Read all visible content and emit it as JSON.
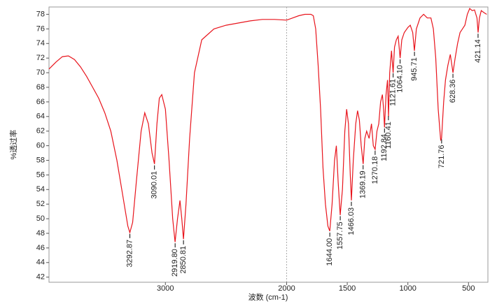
{
  "chart_data": {
    "type": "line",
    "x_label": "波数 (cm-1)",
    "y_label": "%透过率",
    "xlim": [
      3960,
      340
    ],
    "ylim": [
      41.3,
      79
    ],
    "xticks": [
      3000,
      2000,
      1500,
      1000,
      500
    ],
    "yticks": [
      42,
      44,
      46,
      48,
      50,
      52,
      54,
      56,
      58,
      60,
      62,
      64,
      66,
      68,
      70,
      72,
      74,
      76,
      78
    ],
    "x_dashed_line": 2000,
    "color": "#e8141c",
    "x": [
      3960,
      3900,
      3850,
      3800,
      3750,
      3700,
      3650,
      3600,
      3550,
      3500,
      3450,
      3400,
      3350,
      3310,
      3293,
      3270,
      3240,
      3200,
      3170,
      3140,
      3110,
      3090,
      3070,
      3050,
      3030,
      3000,
      2970,
      2940,
      2920,
      2900,
      2880,
      2865,
      2851,
      2830,
      2800,
      2760,
      2700,
      2600,
      2500,
      2400,
      2300,
      2200,
      2100,
      2000,
      1950,
      1900,
      1850,
      1800,
      1780,
      1760,
      1740,
      1720,
      1700,
      1680,
      1660,
      1644,
      1625,
      1605,
      1590,
      1575,
      1558,
      1540,
      1520,
      1505,
      1490,
      1475,
      1466,
      1450,
      1430,
      1415,
      1400,
      1385,
      1369,
      1355,
      1340,
      1320,
      1300,
      1285,
      1270,
      1255,
      1240,
      1225,
      1210,
      1200,
      1193,
      1180,
      1168,
      1160,
      1150,
      1135,
      1122,
      1110,
      1095,
      1080,
      1064,
      1050,
      1030,
      1000,
      980,
      960,
      946,
      930,
      900,
      870,
      840,
      810,
      790,
      770,
      750,
      730,
      722,
      705,
      690,
      670,
      650,
      628,
      610,
      590,
      570,
      550,
      530,
      510,
      490,
      470,
      450,
      430,
      421,
      410,
      395,
      370,
      350
    ],
    "values": [
      70.5,
      71.5,
      72.2,
      72.3,
      71.8,
      70.8,
      69.5,
      68.0,
      66.5,
      64.5,
      62,
      58,
      53,
      49,
      48.1,
      49.5,
      55,
      62,
      64.5,
      63,
      59,
      57.5,
      63,
      66.5,
      67,
      65,
      58,
      50,
      46.8,
      50,
      52.5,
      50,
      47.2,
      52,
      61,
      70,
      74.5,
      76,
      76.5,
      76.8,
      77.1,
      77.3,
      77.3,
      77.2,
      77.5,
      77.8,
      78,
      78,
      77.8,
      76,
      71,
      65,
      57,
      52,
      49,
      48.3,
      52,
      58,
      60,
      55,
      50.5,
      54,
      62,
      65,
      63,
      56,
      52.5,
      58,
      63,
      64.8,
      63.5,
      60,
      57.5,
      61,
      62,
      61,
      63,
      60,
      59.5,
      62,
      63,
      66,
      67,
      65,
      62.5,
      67,
      69,
      64,
      70,
      73,
      70,
      73.5,
      74.5,
      75,
      72,
      74.5,
      75.5,
      76.2,
      76.5,
      75.5,
      73,
      76,
      77.5,
      78,
      77.5,
      77.5,
      76,
      72,
      65,
      60.8,
      61,
      66,
      69,
      71,
      72.5,
      70,
      72,
      74,
      75.5,
      76,
      76.5,
      78,
      78.8,
      78.5,
      78.6,
      77.5,
      75.5,
      77.5,
      78.5,
      78.2,
      78
    ],
    "annotations": [
      {
        "x": 3292.87,
        "text": "3292.87"
      },
      {
        "x": 3090.01,
        "text": "3090.01"
      },
      {
        "x": 2919.8,
        "text": "2919.80"
      },
      {
        "x": 2850.81,
        "text": "2850.81"
      },
      {
        "x": 1644,
        "text": "1644.00"
      },
      {
        "x": 1557.75,
        "text": "1557.75"
      },
      {
        "x": 1466.03,
        "text": "1466.03"
      },
      {
        "x": 1369.19,
        "text": "1369.19"
      },
      {
        "x": 1270.18,
        "text": "1270.18"
      },
      {
        "x": 1192.84,
        "text": "1192.84"
      },
      {
        "x": 1160.41,
        "text": "1160.41"
      },
      {
        "x": 1121.61,
        "text": "1121.61"
      },
      {
        "x": 1064.1,
        "text": "1064.10"
      },
      {
        "x": 945.71,
        "text": "945.71"
      },
      {
        "x": 721.76,
        "text": "721.76"
      },
      {
        "x": 628.36,
        "text": "628.36"
      },
      {
        "x": 421.14,
        "text": "421.14"
      }
    ]
  }
}
